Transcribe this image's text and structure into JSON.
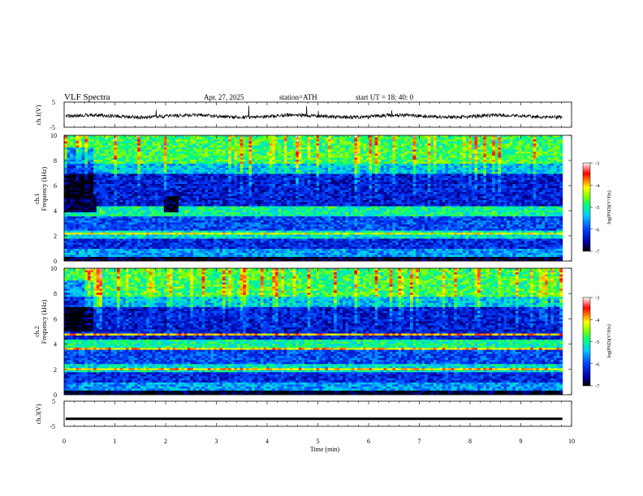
{
  "header": {
    "title": "VLF  Spectra",
    "date": "Apr. 27, 2025",
    "station": "station=ATH",
    "start": "start  UT  =    18: 40: 0"
  },
  "chart_data": [
    {
      "type": "line",
      "name": "ch1-waveform",
      "ylabel": "ch.1(V)",
      "ylim": [
        -5,
        5
      ],
      "ytick_labels": [
        "5",
        "-5"
      ],
      "xlim": [
        0,
        10
      ],
      "color": "#000000"
    },
    {
      "type": "heatmap",
      "name": "ch1-spectrogram",
      "ylabel_channel": "ch.1",
      "ylabel": "Frequency  (kHz)",
      "ylim": [
        0,
        10
      ],
      "ytick_labels": [
        "0",
        "2",
        "4",
        "6",
        "8",
        "10"
      ],
      "xlim": [
        0,
        10
      ],
      "data_end_min": 9.82,
      "colorbar": {
        "label": "log(PSD)(V²/Hz)",
        "range": [
          -7,
          -3
        ],
        "tick_labels": [
          "-3",
          "-4",
          "-5",
          "-6",
          "-7"
        ]
      }
    },
    {
      "type": "heatmap",
      "name": "ch2-spectrogram",
      "ylabel_channel": "ch.2",
      "ylabel": "Frequency  (kHz)",
      "ylim": [
        0,
        10
      ],
      "ytick_labels": [
        "0",
        "2",
        "4",
        "6",
        "8",
        "10"
      ],
      "xlim": [
        0,
        10
      ],
      "data_end_min": 9.82,
      "colorbar": {
        "label": "log(PSD)(V²/Hz)",
        "range": [
          -7,
          -3
        ],
        "tick_labels": [
          "-3",
          "-4",
          "-5",
          "-6",
          "-7"
        ]
      }
    },
    {
      "type": "line",
      "name": "ch3-waveform",
      "ylabel": "ch.3(V)",
      "ylim": [
        -5,
        5
      ],
      "ytick_labels": [
        "5",
        "-5"
      ],
      "xlim": [
        0,
        10
      ],
      "level": -2,
      "xlabel": "Time  (min)",
      "xtick_labels": [
        "0",
        "1",
        "2",
        "3",
        "4",
        "5",
        "6",
        "7",
        "8",
        "9",
        "10"
      ]
    }
  ]
}
